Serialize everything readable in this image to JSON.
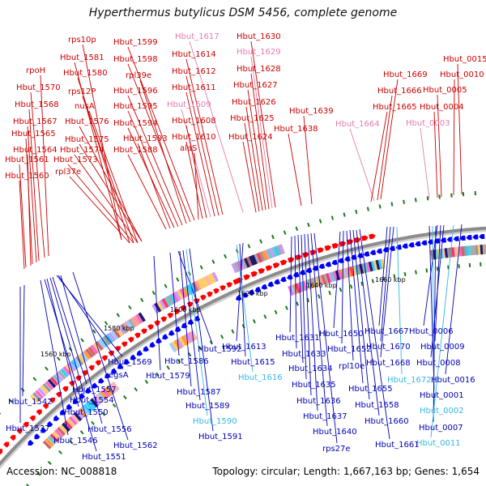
{
  "title": "Hyperthermus butylicus DSM 5456, complete genome",
  "footer": {
    "accession": "Accession: NC_008818",
    "summary": "Topology: circular; Length: 1,667,163 bp; Genes: 1,654"
  },
  "colors": {
    "upper_label": "#cc0000",
    "upper_label_rna": "#e67aaf",
    "lower_label": "#0000b4",
    "lower_label_rna": "#33b7e6",
    "forward_arrow": "#ff0000",
    "reverse_arrow": "#0000ff",
    "backbone": "#8c8c8c",
    "gc_tick": "#1a7a1a"
  },
  "scale_labels": [
    "1560 kbp",
    "1580 kbp",
    "1600 kbp",
    "1620 kbp",
    "1640 kbp",
    "1660 kbp"
  ],
  "upper_labels": [
    {
      "text": "rps10p",
      "rna": false
    },
    {
      "text": "Hbut_1581",
      "rna": false
    },
    {
      "text": "rpoH",
      "rna": false
    },
    {
      "text": "Hbut_1580",
      "rna": false
    },
    {
      "text": "Hbut_1570",
      "rna": false
    },
    {
      "text": "rps12P",
      "rna": false
    },
    {
      "text": "Hbut_1568",
      "rna": false
    },
    {
      "text": "nusA",
      "rna": false
    },
    {
      "text": "Hbut_1567",
      "rna": false
    },
    {
      "text": "Hbut_1576",
      "rna": false
    },
    {
      "text": "Hbut_1565",
      "rna": false
    },
    {
      "text": "Hbut_1575",
      "rna": false
    },
    {
      "text": "Hbut_1564",
      "rna": false
    },
    {
      "text": "Hbut_1574",
      "rna": false
    },
    {
      "text": "Hbut_1561",
      "rna": false
    },
    {
      "text": "Hbut_1573",
      "rna": false
    },
    {
      "text": "rpl37e",
      "rna": false
    },
    {
      "text": "Hbut_1560",
      "rna": false
    },
    {
      "text": "Hbut_1599",
      "rna": false
    },
    {
      "text": "Hbut_1598",
      "rna": false
    },
    {
      "text": "rpl39e",
      "rna": false
    },
    {
      "text": "Hbut_1596",
      "rna": false
    },
    {
      "text": "Hbut_1595",
      "rna": false
    },
    {
      "text": "Hbut_1594",
      "rna": false
    },
    {
      "text": "Hbut_1593",
      "rna": false
    },
    {
      "text": "Hbut_1588",
      "rna": false
    },
    {
      "text": "Hbut_1617",
      "rna": true
    },
    {
      "text": "Hbut_1614",
      "rna": false
    },
    {
      "text": "Hbut_1612",
      "rna": false
    },
    {
      "text": "Hbut_1611",
      "rna": false
    },
    {
      "text": "Hbut_1609",
      "rna": true
    },
    {
      "text": "Hbut_1608",
      "rna": false
    },
    {
      "text": "Hbut_1610",
      "rna": false
    },
    {
      "text": "alaS",
      "rna": false
    },
    {
      "text": "Hbut_1630",
      "rna": false
    },
    {
      "text": "Hbut_1629",
      "rna": true
    },
    {
      "text": "Hbut_1628",
      "rna": false
    },
    {
      "text": "Hbut_1627",
      "rna": false
    },
    {
      "text": "Hbut_1626",
      "rna": false
    },
    {
      "text": "Hbut_1625",
      "rna": false
    },
    {
      "text": "Hbut_1624",
      "rna": false
    },
    {
      "text": "Hbut_1639",
      "rna": false
    },
    {
      "text": "Hbut_1638",
      "rna": false
    },
    {
      "text": "Hbut_1664",
      "rna": true
    },
    {
      "text": "Hbut_1669",
      "rna": false
    },
    {
      "text": "Hbut_1666",
      "rna": false
    },
    {
      "text": "Hbut_1665",
      "rna": false
    },
    {
      "text": "Hbut_0015",
      "rna": false
    },
    {
      "text": "Hbut_0010",
      "rna": false
    },
    {
      "text": "Hbut_0005",
      "rna": false
    },
    {
      "text": "Hbut_0004",
      "rna": false
    },
    {
      "text": "Hbut_0003",
      "rna": true
    }
  ],
  "lower_labels": [
    {
      "text": "Hbut_1569",
      "rna": false
    },
    {
      "text": "egsA",
      "rna": false
    },
    {
      "text": "Hbut_1557",
      "rna": false
    },
    {
      "text": "Hbut_1554",
      "rna": false
    },
    {
      "text": "Hbut_1542",
      "rna": false
    },
    {
      "text": "Hbut_1550",
      "rna": false
    },
    {
      "text": "Hbut_1537",
      "rna": false
    },
    {
      "text": "Hbut_1556",
      "rna": false
    },
    {
      "text": "Hbut_1546",
      "rna": false
    },
    {
      "text": "Hbut_1562",
      "rna": false
    },
    {
      "text": "Hbut_1551",
      "rna": false
    },
    {
      "text": "Hbut_1592",
      "rna": false
    },
    {
      "text": "Hbut_1586",
      "rna": false
    },
    {
      "text": "Hbut_1579",
      "rna": false
    },
    {
      "text": "Hbut_1587",
      "rna": false
    },
    {
      "text": "Hbut_1589",
      "rna": false
    },
    {
      "text": "Hbut_1590",
      "rna": true
    },
    {
      "text": "Hbut_1591",
      "rna": false
    },
    {
      "text": "Hbut_1613",
      "rna": false
    },
    {
      "text": "Hbut_1615",
      "rna": false
    },
    {
      "text": "Hbut_1616",
      "rna": true
    },
    {
      "text": "Hbut_1631",
      "rna": false
    },
    {
      "text": "Hbut_1633",
      "rna": false
    },
    {
      "text": "Hbut_1634",
      "rna": false
    },
    {
      "text": "Hbut_1635",
      "rna": false
    },
    {
      "text": "Hbut_1636",
      "rna": false
    },
    {
      "text": "Hbut_1637",
      "rna": false
    },
    {
      "text": "Hbut_1640",
      "rna": false
    },
    {
      "text": "rps27e",
      "rna": false
    },
    {
      "text": "Hbut_1650",
      "rna": false
    },
    {
      "text": "Hbut_1652",
      "rna": false
    },
    {
      "text": "rpl10e",
      "rna": false
    },
    {
      "text": "Hbut_1655",
      "rna": false
    },
    {
      "text": "Hbut_1658",
      "rna": false
    },
    {
      "text": "Hbut_1660",
      "rna": false
    },
    {
      "text": "Hbut_1661",
      "rna": false
    },
    {
      "text": "Hbut_1667",
      "rna": false
    },
    {
      "text": "Hbut_1670",
      "rna": false
    },
    {
      "text": "Hbut_1668",
      "rna": false
    },
    {
      "text": "Hbut_1672",
      "rna": true
    },
    {
      "text": "Hbut_0006",
      "rna": false
    },
    {
      "text": "Hbut_0009",
      "rna": false
    },
    {
      "text": "Hbut_0008",
      "rna": false
    },
    {
      "text": "Hbut_0016",
      "rna": false
    },
    {
      "text": "Hbut_0001",
      "rna": false
    },
    {
      "text": "Hbut_0002",
      "rna": true
    },
    {
      "text": "Hbut_0007",
      "rna": false
    },
    {
      "text": "Hbut_0011",
      "rna": true
    }
  ]
}
